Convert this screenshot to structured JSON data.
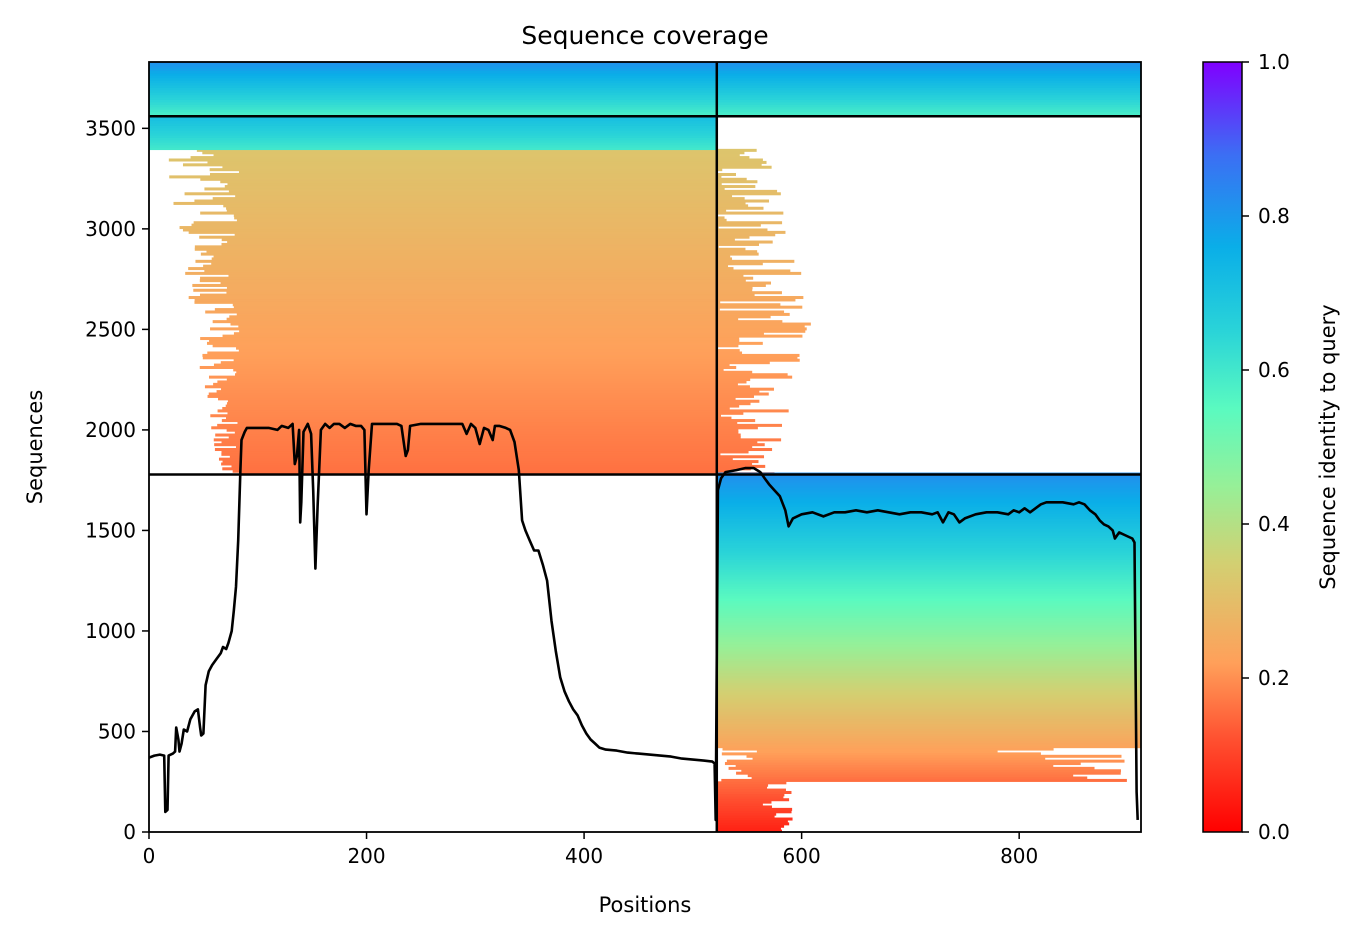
{
  "chart_data": {
    "type": "heatmap",
    "title": "Sequence coverage",
    "xlabel": "Positions",
    "ylabel": "Sequences",
    "xlim": [
      0,
      912
    ],
    "ylim": [
      0,
      3830
    ],
    "x_ticks": [
      0,
      200,
      400,
      600,
      800
    ],
    "y_ticks": [
      0,
      500,
      1000,
      1500,
      2000,
      2500,
      3000,
      3500
    ],
    "grid": false,
    "colorbar": {
      "label": "Sequence identity to query",
      "range": [
        0,
        1
      ],
      "ticks": [
        "0.0",
        "0.2",
        "0.4",
        "0.6",
        "0.8",
        "1.0"
      ],
      "colormap": "rainbow"
    },
    "domain_boundaries": {
      "x": [
        522
      ],
      "y": [
        1778,
        3560
      ]
    },
    "coverage_blocks": [
      {
        "name": "upper-left",
        "x": [
          14,
          612
        ],
        "core_x": [
          83,
          522
        ],
        "y": [
          1778,
          3395
        ],
        "identity_range": [
          0.16,
          0.32
        ]
      },
      {
        "name": "upper-left-high",
        "x": [
          0,
          522
        ],
        "y": [
          3395,
          3560
        ],
        "identity_range": [
          0.6,
          0.72
        ]
      },
      {
        "name": "top-full-width",
        "x": [
          0,
          912
        ],
        "y": [
          3560,
          3830
        ],
        "identity_range": [
          0.58,
          0.82
        ]
      },
      {
        "name": "lower-right",
        "x": [
          522,
          912
        ],
        "y": [
          0,
          1778
        ],
        "identity_range": [
          0.05,
          0.82
        ]
      }
    ],
    "coverage_line": {
      "name": "coverage",
      "color": "#000000",
      "points": [
        [
          0,
          370
        ],
        [
          5,
          380
        ],
        [
          10,
          385
        ],
        [
          14,
          380
        ],
        [
          15,
          100
        ],
        [
          17,
          110
        ],
        [
          18,
          380
        ],
        [
          22,
          390
        ],
        [
          24,
          400
        ],
        [
          25,
          520
        ],
        [
          27,
          460
        ],
        [
          28,
          400
        ],
        [
          30,
          440
        ],
        [
          32,
          510
        ],
        [
          35,
          500
        ],
        [
          38,
          560
        ],
        [
          42,
          600
        ],
        [
          45,
          610
        ],
        [
          47,
          520
        ],
        [
          48,
          480
        ],
        [
          50,
          490
        ],
        [
          52,
          730
        ],
        [
          55,
          800
        ],
        [
          58,
          830
        ],
        [
          62,
          860
        ],
        [
          66,
          890
        ],
        [
          68,
          920
        ],
        [
          71,
          910
        ],
        [
          73,
          940
        ],
        [
          76,
          1000
        ],
        [
          78,
          1100
        ],
        [
          80,
          1220
        ],
        [
          82,
          1450
        ],
        [
          84,
          1800
        ],
        [
          85,
          1950
        ],
        [
          88,
          1990
        ],
        [
          90,
          2010
        ],
        [
          100,
          2010
        ],
        [
          110,
          2010
        ],
        [
          118,
          2000
        ],
        [
          122,
          2020
        ],
        [
          128,
          2010
        ],
        [
          132,
          2030
        ],
        [
          134,
          1830
        ],
        [
          136,
          1870
        ],
        [
          138,
          2000
        ],
        [
          139,
          1540
        ],
        [
          140,
          1640
        ],
        [
          142,
          1990
        ],
        [
          146,
          2030
        ],
        [
          149,
          1980
        ],
        [
          151,
          1700
        ],
        [
          153,
          1310
        ],
        [
          155,
          1620
        ],
        [
          158,
          2000
        ],
        [
          162,
          2030
        ],
        [
          166,
          2010
        ],
        [
          170,
          2030
        ],
        [
          175,
          2030
        ],
        [
          180,
          2010
        ],
        [
          185,
          2030
        ],
        [
          190,
          2020
        ],
        [
          195,
          2020
        ],
        [
          198,
          2000
        ],
        [
          200,
          1580
        ],
        [
          202,
          1800
        ],
        [
          205,
          2030
        ],
        [
          210,
          2030
        ],
        [
          220,
          2030
        ],
        [
          228,
          2030
        ],
        [
          232,
          2020
        ],
        [
          236,
          1870
        ],
        [
          238,
          1900
        ],
        [
          240,
          2020
        ],
        [
          250,
          2030
        ],
        [
          260,
          2030
        ],
        [
          270,
          2030
        ],
        [
          280,
          2030
        ],
        [
          288,
          2030
        ],
        [
          292,
          1980
        ],
        [
          296,
          2030
        ],
        [
          300,
          2010
        ],
        [
          304,
          1930
        ],
        [
          308,
          2010
        ],
        [
          312,
          2000
        ],
        [
          316,
          1950
        ],
        [
          318,
          2020
        ],
        [
          322,
          2020
        ],
        [
          328,
          2010
        ],
        [
          332,
          2000
        ],
        [
          336,
          1940
        ],
        [
          340,
          1800
        ],
        [
          343,
          1550
        ],
        [
          346,
          1500
        ],
        [
          350,
          1450
        ],
        [
          354,
          1400
        ],
        [
          358,
          1400
        ],
        [
          362,
          1330
        ],
        [
          366,
          1250
        ],
        [
          370,
          1050
        ],
        [
          374,
          900
        ],
        [
          378,
          770
        ],
        [
          382,
          700
        ],
        [
          386,
          650
        ],
        [
          390,
          610
        ],
        [
          394,
          580
        ],
        [
          398,
          530
        ],
        [
          402,
          490
        ],
        [
          406,
          460
        ],
        [
          410,
          440
        ],
        [
          414,
          420
        ],
        [
          420,
          410
        ],
        [
          430,
          405
        ],
        [
          440,
          395
        ],
        [
          450,
          390
        ],
        [
          460,
          385
        ],
        [
          470,
          380
        ],
        [
          480,
          375
        ],
        [
          490,
          365
        ],
        [
          500,
          360
        ],
        [
          510,
          355
        ],
        [
          518,
          350
        ],
        [
          520,
          340
        ],
        [
          521,
          60
        ],
        [
          523,
          1700
        ],
        [
          526,
          1760
        ],
        [
          530,
          1790
        ],
        [
          540,
          1800
        ],
        [
          548,
          1810
        ],
        [
          556,
          1810
        ],
        [
          562,
          1790
        ],
        [
          566,
          1760
        ],
        [
          570,
          1730
        ],
        [
          575,
          1700
        ],
        [
          580,
          1670
        ],
        [
          585,
          1600
        ],
        [
          588,
          1520
        ],
        [
          592,
          1560
        ],
        [
          600,
          1580
        ],
        [
          610,
          1590
        ],
        [
          620,
          1570
        ],
        [
          630,
          1590
        ],
        [
          640,
          1590
        ],
        [
          650,
          1600
        ],
        [
          660,
          1590
        ],
        [
          670,
          1600
        ],
        [
          680,
          1590
        ],
        [
          690,
          1580
        ],
        [
          700,
          1590
        ],
        [
          710,
          1590
        ],
        [
          720,
          1580
        ],
        [
          725,
          1590
        ],
        [
          730,
          1540
        ],
        [
          735,
          1590
        ],
        [
          740,
          1580
        ],
        [
          745,
          1540
        ],
        [
          750,
          1560
        ],
        [
          760,
          1580
        ],
        [
          770,
          1590
        ],
        [
          780,
          1590
        ],
        [
          790,
          1580
        ],
        [
          795,
          1600
        ],
        [
          800,
          1590
        ],
        [
          805,
          1610
        ],
        [
          810,
          1590
        ],
        [
          815,
          1610
        ],
        [
          820,
          1630
        ],
        [
          825,
          1640
        ],
        [
          830,
          1640
        ],
        [
          840,
          1640
        ],
        [
          850,
          1630
        ],
        [
          855,
          1640
        ],
        [
          860,
          1630
        ],
        [
          865,
          1600
        ],
        [
          870,
          1580
        ],
        [
          874,
          1550
        ],
        [
          878,
          1530
        ],
        [
          882,
          1520
        ],
        [
          886,
          1500
        ],
        [
          888,
          1460
        ],
        [
          892,
          1490
        ],
        [
          896,
          1480
        ],
        [
          900,
          1470
        ],
        [
          904,
          1460
        ],
        [
          906,
          1440
        ],
        [
          908,
          200
        ],
        [
          909,
          60
        ]
      ]
    }
  }
}
